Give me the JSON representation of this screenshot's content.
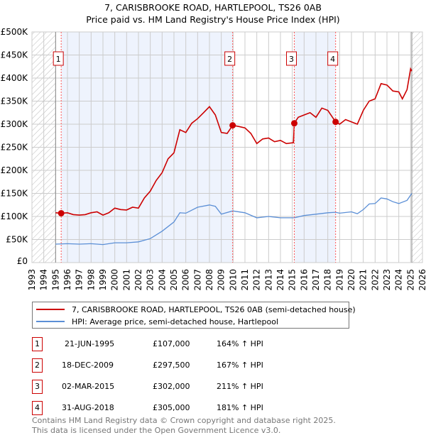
{
  "title": "7, CARISBROOKE ROAD, HARTLEPOOL, TS26 0AB",
  "subtitle": "Price paid vs. HM Land Registry's House Price Index (HPI)",
  "colors": {
    "property": "#cc0000",
    "hpi": "#5b8fd6",
    "shade": "#eef3fd"
  },
  "chart_data": {
    "type": "line",
    "title": "7, CARISBROOKE ROAD, HARTLEPOOL, TS26 0AB",
    "xlim": [
      1993,
      2026
    ],
    "ylim": [
      0,
      500000
    ],
    "yticks": [
      "£0",
      "£50K",
      "£100K",
      "£150K",
      "£200K",
      "£250K",
      "£300K",
      "£350K",
      "£400K",
      "£450K",
      "£500K"
    ],
    "xticks": [
      "1993",
      "1994",
      "1995",
      "1996",
      "1997",
      "1998",
      "1999",
      "2000",
      "2001",
      "2002",
      "2003",
      "2004",
      "2005",
      "2006",
      "2007",
      "2008",
      "2009",
      "2010",
      "2011",
      "2012",
      "2013",
      "2014",
      "2015",
      "2016",
      "2017",
      "2018",
      "2019",
      "2020",
      "2021",
      "2022",
      "2023",
      "2024",
      "2025",
      "2026"
    ],
    "grid": true,
    "data_range": [
      1995.0,
      2025.1
    ],
    "series": [
      {
        "name": "7, CARISBROOKE ROAD, HARTLEPOOL, TS26 0AB (semi-detached house)",
        "points": [
          [
            1995.0,
            108
          ],
          [
            1995.47,
            107
          ],
          [
            1996,
            108
          ],
          [
            1996.5,
            104
          ],
          [
            1997,
            103
          ],
          [
            1997.5,
            104
          ],
          [
            1998,
            108
          ],
          [
            1998.5,
            110
          ],
          [
            1999,
            103
          ],
          [
            1999.5,
            108
          ],
          [
            2000,
            118
          ],
          [
            2000.5,
            115
          ],
          [
            2001,
            114
          ],
          [
            2001.5,
            120
          ],
          [
            2002,
            118
          ],
          [
            2002.5,
            140
          ],
          [
            2003,
            155
          ],
          [
            2003.5,
            178
          ],
          [
            2004,
            195
          ],
          [
            2004.5,
            225
          ],
          [
            2005,
            238
          ],
          [
            2005.5,
            288
          ],
          [
            2006,
            282
          ],
          [
            2006.5,
            302
          ],
          [
            2007,
            312
          ],
          [
            2007.5,
            325
          ],
          [
            2008,
            338
          ],
          [
            2008.5,
            320
          ],
          [
            2009,
            282
          ],
          [
            2009.5,
            280
          ],
          [
            2009.96,
            297.5
          ],
          [
            2010.5,
            295
          ],
          [
            2011,
            292
          ],
          [
            2011.5,
            280
          ],
          [
            2012,
            258
          ],
          [
            2012.5,
            268
          ],
          [
            2013,
            270
          ],
          [
            2013.5,
            262
          ],
          [
            2014,
            265
          ],
          [
            2014.5,
            258
          ],
          [
            2015.1,
            260
          ],
          [
            2015.17,
            302
          ],
          [
            2015.5,
            315
          ],
          [
            2016,
            320
          ],
          [
            2016.5,
            325
          ],
          [
            2017,
            315
          ],
          [
            2017.5,
            335
          ],
          [
            2018,
            330
          ],
          [
            2018.66,
            305
          ],
          [
            2019,
            300
          ],
          [
            2019.5,
            310
          ],
          [
            2020,
            305
          ],
          [
            2020.5,
            300
          ],
          [
            2021,
            330
          ],
          [
            2021.5,
            350
          ],
          [
            2022,
            355
          ],
          [
            2022.5,
            388
          ],
          [
            2023,
            385
          ],
          [
            2023.5,
            372
          ],
          [
            2024,
            370
          ],
          [
            2024.3,
            355
          ],
          [
            2024.7,
            375
          ],
          [
            2025,
            420
          ],
          [
            2025.1,
            415
          ]
        ]
      },
      {
        "name": "HPI: Average price, semi-detached house, Hartlepool",
        "points": [
          [
            1995,
            40
          ],
          [
            1996,
            41
          ],
          [
            1997,
            40
          ],
          [
            1998,
            41
          ],
          [
            1999,
            39
          ],
          [
            2000,
            43
          ],
          [
            2001,
            43
          ],
          [
            2002,
            45
          ],
          [
            2003,
            52
          ],
          [
            2004,
            68
          ],
          [
            2005,
            88
          ],
          [
            2005.5,
            108
          ],
          [
            2006,
            107
          ],
          [
            2007,
            120
          ],
          [
            2008,
            125
          ],
          [
            2008.5,
            122
          ],
          [
            2009,
            105
          ],
          [
            2009.96,
            112
          ],
          [
            2011,
            108
          ],
          [
            2012,
            97
          ],
          [
            2013,
            100
          ],
          [
            2014,
            97
          ],
          [
            2015.17,
            97
          ],
          [
            2016,
            102
          ],
          [
            2017,
            105
          ],
          [
            2018,
            108
          ],
          [
            2018.66,
            109
          ],
          [
            2019,
            107
          ],
          [
            2020,
            110
          ],
          [
            2020.5,
            106
          ],
          [
            2021,
            115
          ],
          [
            2021.5,
            127
          ],
          [
            2022,
            128
          ],
          [
            2022.5,
            140
          ],
          [
            2023,
            138
          ],
          [
            2023.5,
            132
          ],
          [
            2024,
            128
          ],
          [
            2024.7,
            135
          ],
          [
            2025.1,
            150
          ]
        ]
      }
    ],
    "sales": [
      {
        "label": "1",
        "x": 1995.47,
        "y": 107000
      },
      {
        "label": "2",
        "x": 2009.96,
        "y": 297500
      },
      {
        "label": "3",
        "x": 2015.17,
        "y": 302000
      },
      {
        "label": "4",
        "x": 2018.66,
        "y": 305000
      }
    ]
  },
  "legend": [
    "7, CARISBROOKE ROAD, HARTLEPOOL, TS26 0AB (semi-detached house)",
    "HPI: Average price, semi-detached house, Hartlepool"
  ],
  "transactions": [
    {
      "num": "1",
      "date": "21-JUN-1995",
      "price": "£107,000",
      "hpi": "164% ↑ HPI"
    },
    {
      "num": "2",
      "date": "18-DEC-2009",
      "price": "£297,500",
      "hpi": "167% ↑ HPI"
    },
    {
      "num": "3",
      "date": "02-MAR-2015",
      "price": "£302,000",
      "hpi": "211% ↑ HPI"
    },
    {
      "num": "4",
      "date": "31-AUG-2018",
      "price": "£305,000",
      "hpi": "181% ↑ HPI"
    }
  ],
  "footer": [
    "Contains HM Land Registry data © Crown copyright and database right 2025.",
    "This data is licensed under the Open Government Licence v3.0."
  ]
}
